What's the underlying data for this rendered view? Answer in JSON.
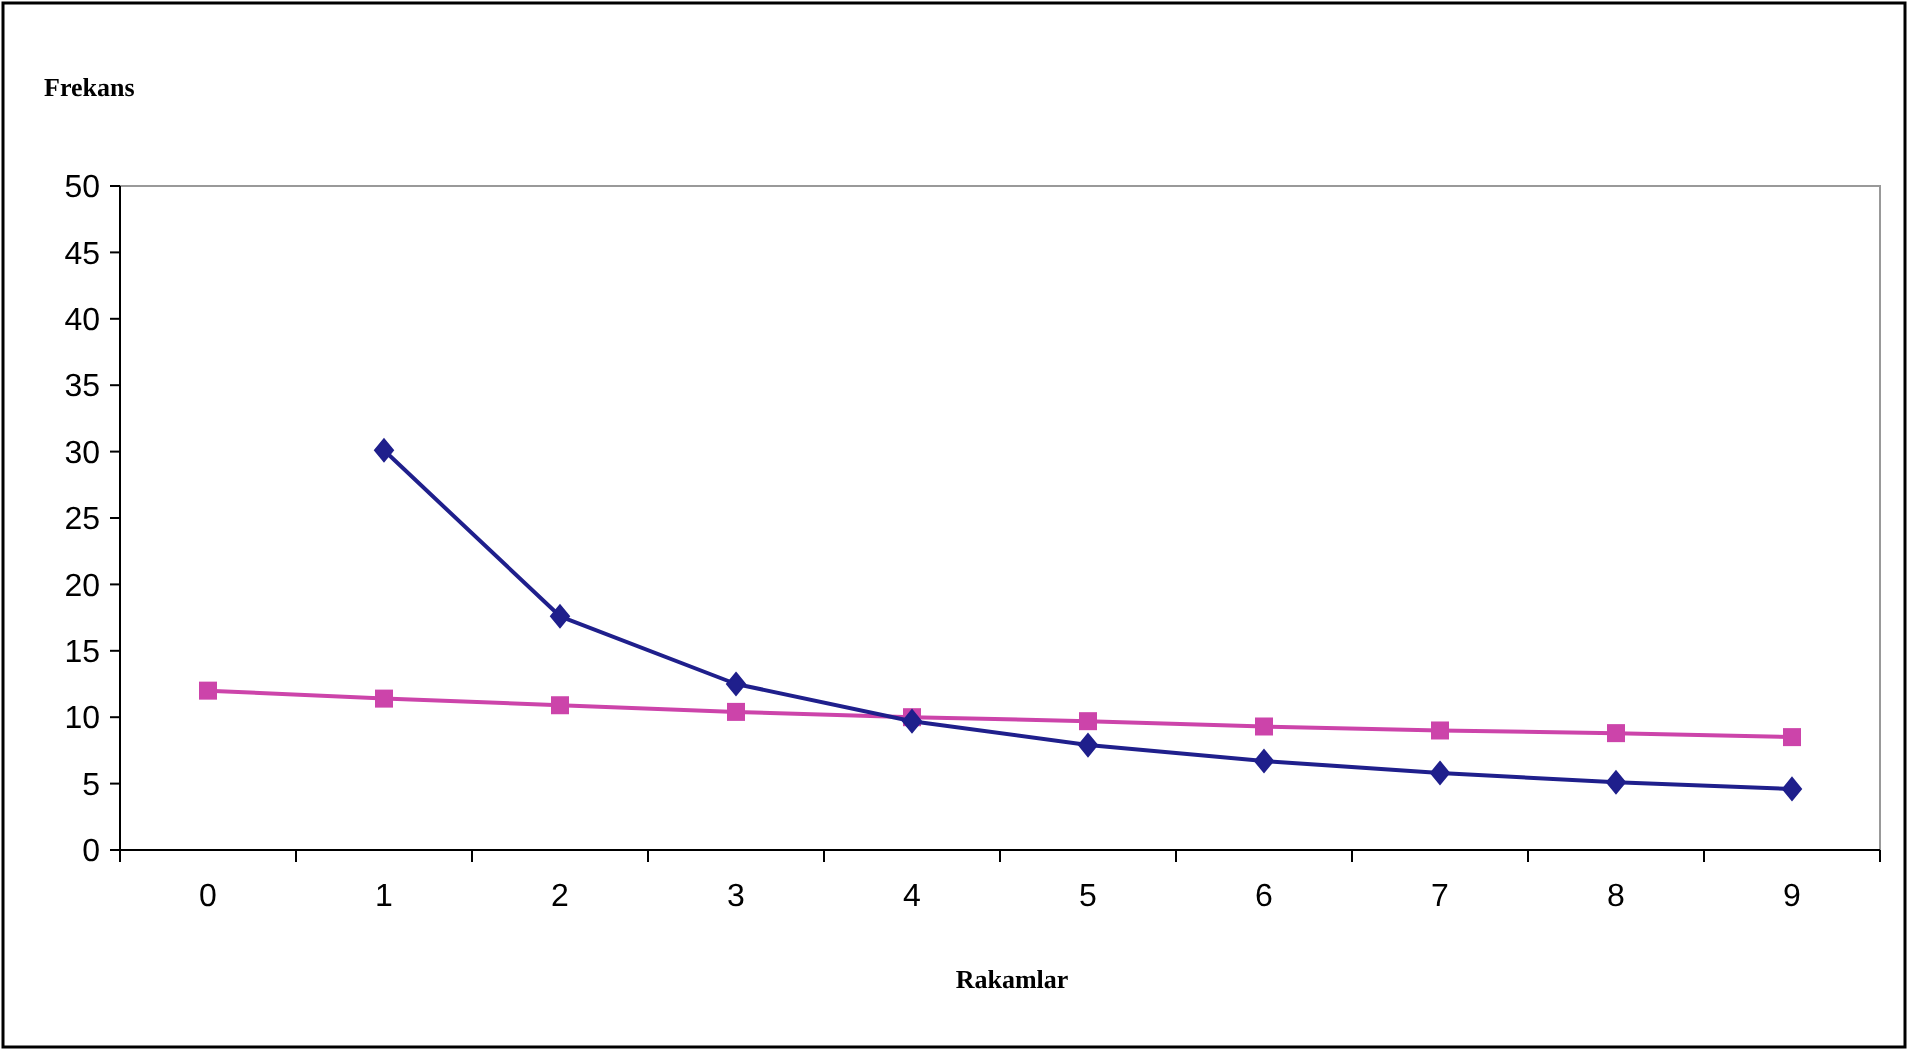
{
  "chart_data": {
    "type": "line",
    "xlabel": "Rakamlar",
    "ylabel": "Frekans",
    "categories": [
      "0",
      "1",
      "2",
      "3",
      "4",
      "5",
      "6",
      "7",
      "8",
      "9"
    ],
    "series": [
      {
        "color": "#1f1f8c",
        "marker": "diamond",
        "values": [
          null,
          30.1,
          17.6,
          12.5,
          9.7,
          7.9,
          6.7,
          5.8,
          5.1,
          4.6
        ]
      },
      {
        "color": "#cc44aa",
        "marker": "square",
        "values": [
          12.0,
          11.4,
          10.9,
          10.4,
          10.0,
          9.7,
          9.3,
          9.0,
          8.8,
          8.5
        ]
      }
    ],
    "ylim": [
      0,
      50
    ],
    "yticks": [
      0,
      5,
      10,
      15,
      20,
      25,
      30,
      35,
      40,
      45,
      50
    ],
    "grid": false,
    "line_style": "solid"
  }
}
